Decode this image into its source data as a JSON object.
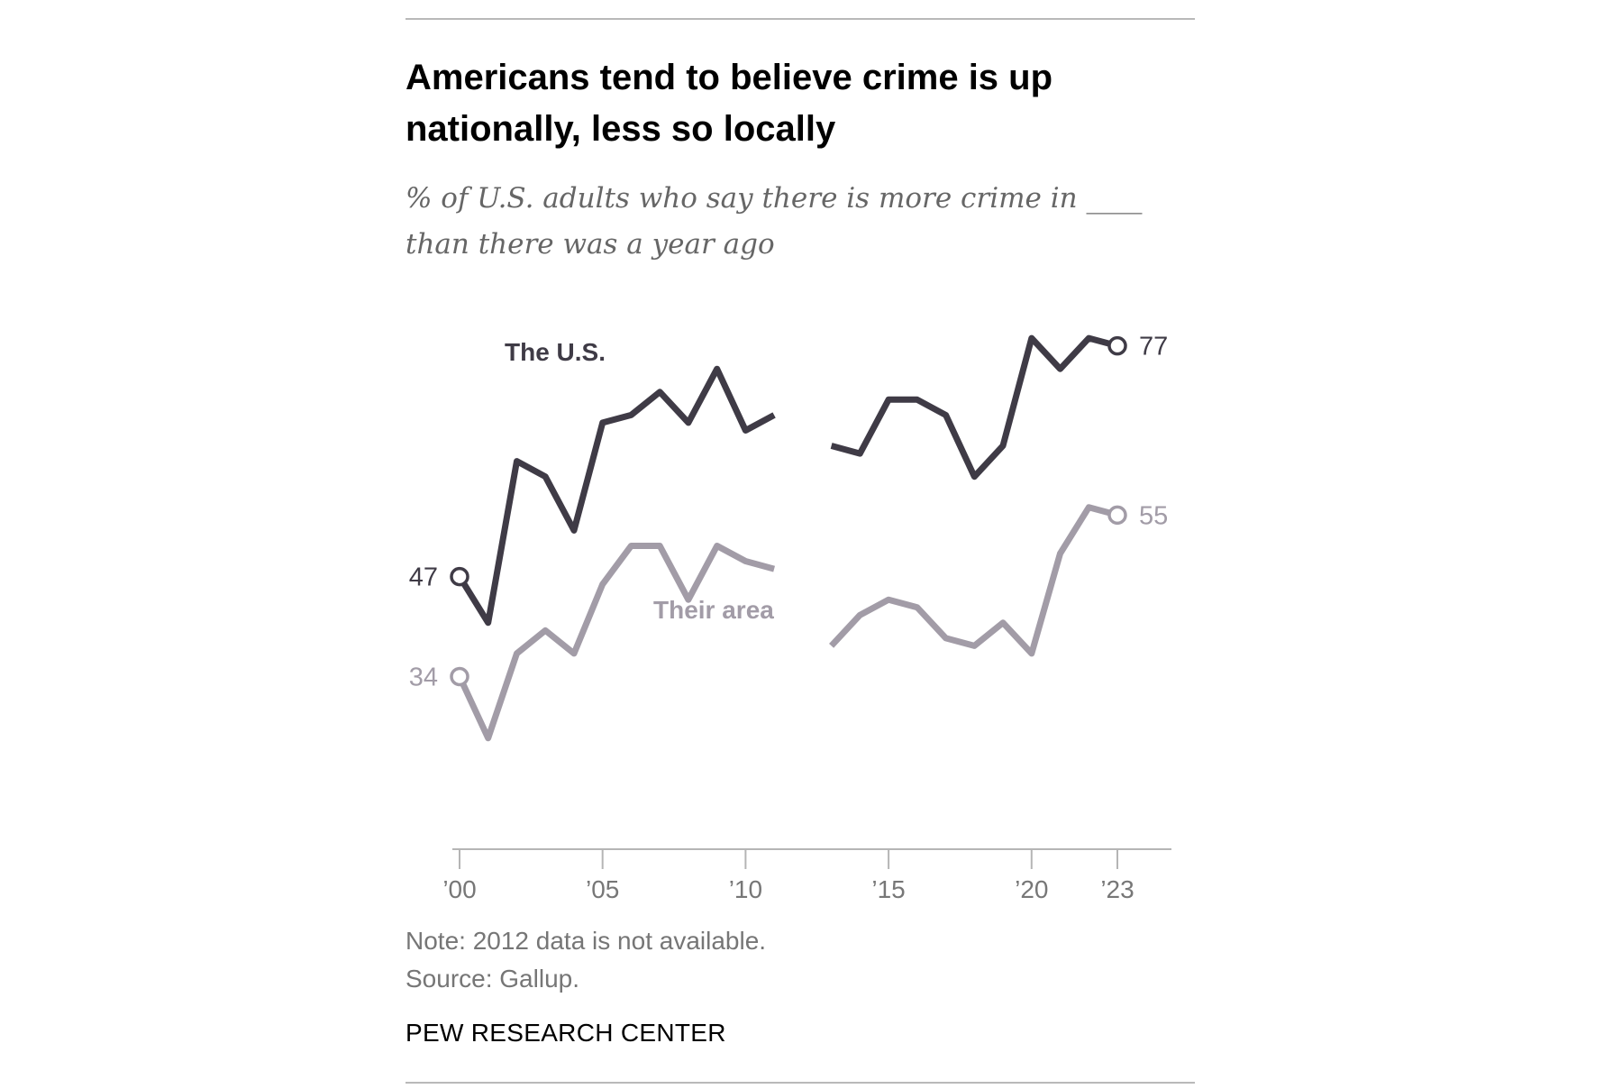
{
  "title": "Americans tend to believe crime is up nationally, less so locally",
  "subtitle": "% of U.S. adults who say there is more crime in ____ than there was a year ago",
  "note": "Note: 2012 data is not available.",
  "source": "Source: Gallup.",
  "brand": "PEW RESEARCH CENTER",
  "colors": {
    "us": "#3f3b46",
    "area": "#a29ca7",
    "axis": "#b5b5b5",
    "tick_text": "#777777"
  },
  "chart_data": {
    "type": "line",
    "title": "Americans tend to believe crime is up nationally, less so locally",
    "xlabel": "",
    "ylabel": "",
    "xlim": [
      2000,
      2023
    ],
    "ylim": [
      0,
      100
    ],
    "x_ticks": [
      2000,
      2005,
      2010,
      2015,
      2020,
      2023
    ],
    "x_tick_labels": [
      "’00",
      "’05",
      "’10",
      "’15",
      "’20",
      "’23"
    ],
    "x": [
      2000,
      2001,
      2002,
      2003,
      2004,
      2005,
      2006,
      2007,
      2008,
      2009,
      2010,
      2011,
      2013,
      2014,
      2015,
      2016,
      2017,
      2018,
      2019,
      2020,
      2021,
      2022,
      2023
    ],
    "series": [
      {
        "name": "The U.S.",
        "color_key": "us",
        "values": [
          47,
          41,
          62,
          60,
          53,
          67,
          68,
          71,
          67,
          74,
          66,
          68,
          64,
          63,
          70,
          70,
          68,
          60,
          64,
          78,
          74,
          78,
          77
        ]
      },
      {
        "name": "Their area",
        "color_key": "area",
        "values": [
          34,
          26,
          37,
          40,
          37,
          46,
          51,
          51,
          44,
          51,
          49,
          48,
          38,
          42,
          44,
          43,
          39,
          38,
          41,
          37,
          50,
          56,
          55
        ]
      }
    ],
    "gap_after": 2011,
    "endpoint_labels": [
      {
        "series": "The U.S.",
        "start": "47",
        "end": "77"
      },
      {
        "series": "Their area",
        "start": "34",
        "end": "55"
      }
    ],
    "legend": "inline labels"
  }
}
